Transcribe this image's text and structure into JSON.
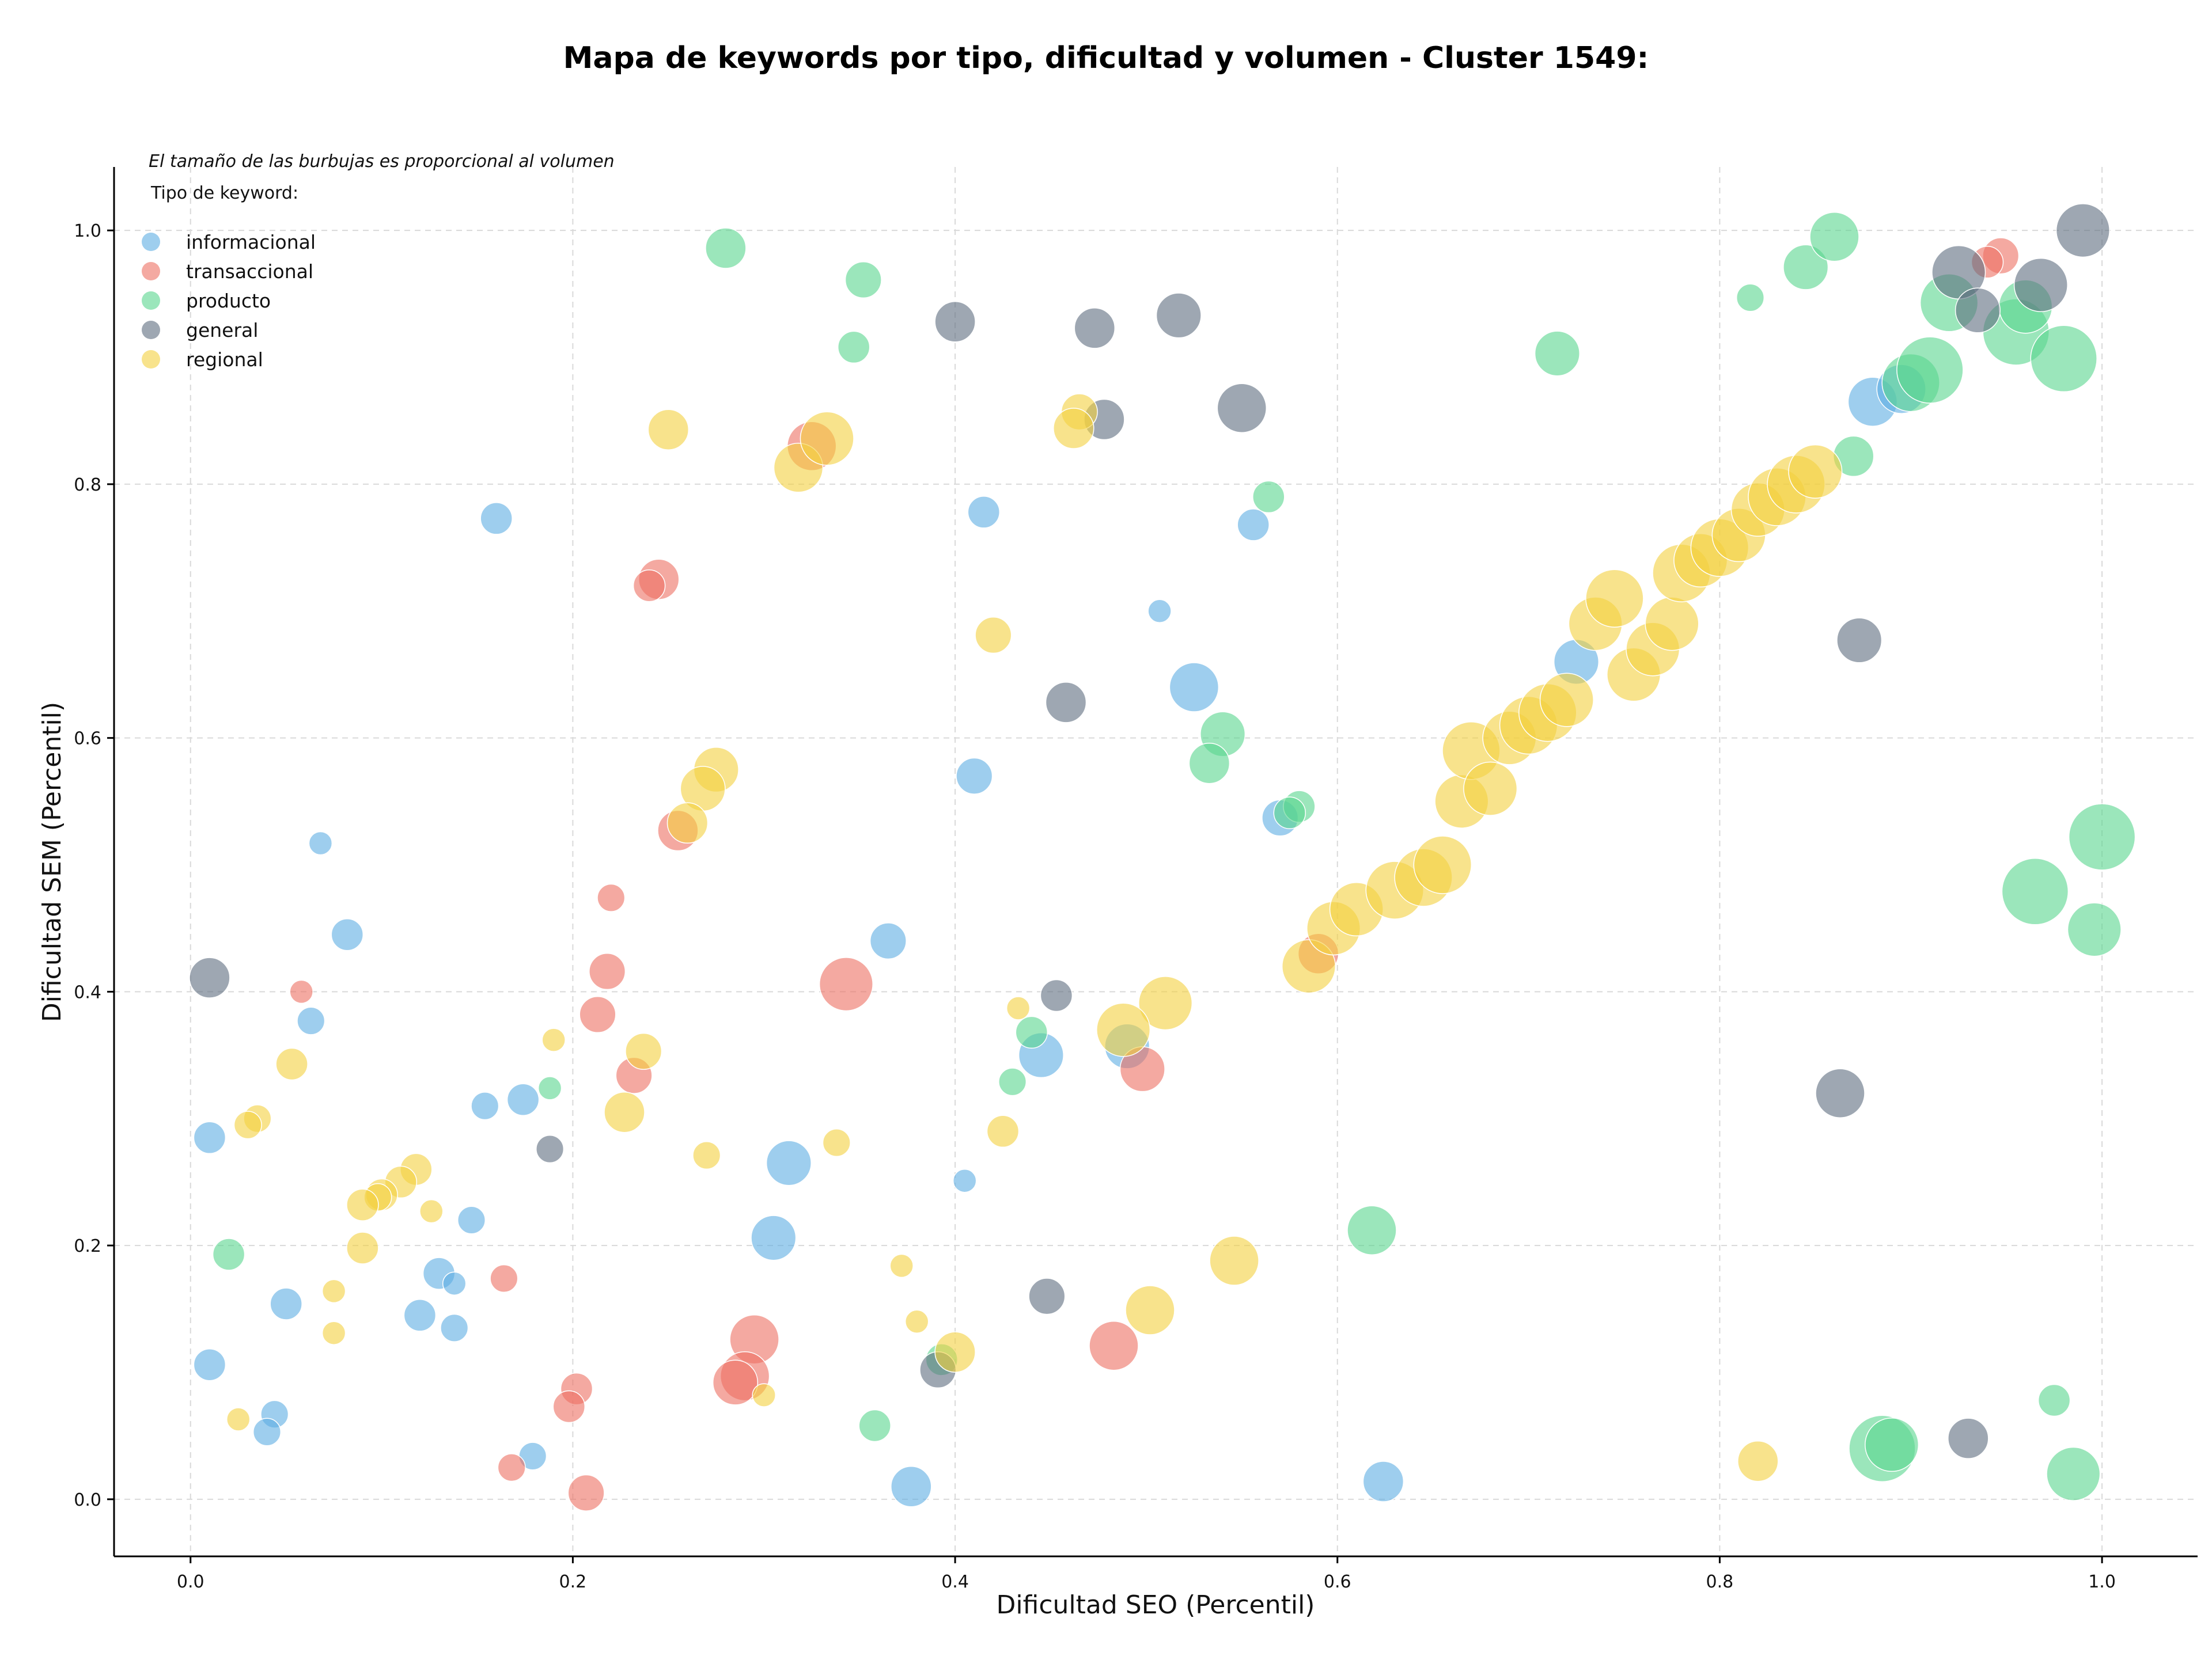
{
  "chart_data": {
    "type": "scatter",
    "title": "Mapa de keywords por tipo, dificultad y volumen - Cluster 1549:",
    "subtitle": "El tamaño de las burbujas es proporcional al volumen",
    "xlabel": "Dificultad SEO (Percentil)",
    "ylabel": "Dificultad SEM (Percentil)",
    "xlim": [
      -0.04,
      1.05
    ],
    "ylim": [
      -0.045,
      1.05
    ],
    "xticks": [
      "0.0",
      "0.2",
      "0.4",
      "0.6",
      "0.8",
      "1.0"
    ],
    "yticks": [
      "0.0",
      "0.2",
      "0.4",
      "0.6",
      "0.8",
      "1.0"
    ],
    "grid": true,
    "legend_title": "Tipo de keyword:",
    "legend_position": "top-left",
    "series": [
      {
        "name": "informacional",
        "color": "#5DADE2",
        "points": [
          [
            0.16,
            0.773,
            2
          ],
          [
            0.415,
            0.778,
            2
          ],
          [
            0.556,
            0.768,
            2
          ],
          [
            0.507,
            0.7,
            1
          ],
          [
            0.525,
            0.64,
            4
          ],
          [
            0.41,
            0.57,
            2.5
          ],
          [
            0.57,
            0.537,
            2.5
          ],
          [
            0.068,
            0.517,
            1
          ],
          [
            0.082,
            0.445,
            2
          ],
          [
            0.365,
            0.44,
            2.5
          ],
          [
            0.063,
            0.377,
            1.5
          ],
          [
            0.445,
            0.35,
            3.5
          ],
          [
            0.49,
            0.357,
            3.5
          ],
          [
            0.174,
            0.315,
            2
          ],
          [
            0.154,
            0.31,
            1.5
          ],
          [
            0.01,
            0.285,
            2
          ],
          [
            0.313,
            0.265,
            3.5
          ],
          [
            0.405,
            0.251,
            1
          ],
          [
            0.147,
            0.22,
            1.5
          ],
          [
            0.305,
            0.206,
            3.5
          ],
          [
            0.13,
            0.178,
            2
          ],
          [
            0.138,
            0.17,
            1
          ],
          [
            0.05,
            0.154,
            2
          ],
          [
            0.12,
            0.145,
            2
          ],
          [
            0.138,
            0.135,
            1.5
          ],
          [
            0.01,
            0.106,
            2
          ],
          [
            0.044,
            0.067,
            1.5
          ],
          [
            0.04,
            0.053,
            1.5
          ],
          [
            0.179,
            0.034,
            1.5
          ],
          [
            0.377,
            0.01,
            3
          ],
          [
            0.624,
            0.014,
            3
          ],
          [
            0.88,
            0.865,
            4
          ],
          [
            0.895,
            0.875,
            4
          ],
          [
            0.725,
            0.66,
            3.5
          ]
        ]
      },
      {
        "name": "transaccional",
        "color": "#EC7063",
        "points": [
          [
            0.325,
            0.83,
            4
          ],
          [
            0.245,
            0.725,
            3
          ],
          [
            0.24,
            0.72,
            2
          ],
          [
            0.255,
            0.527,
            3
          ],
          [
            0.22,
            0.474,
            1.5
          ],
          [
            0.218,
            0.416,
            2.5
          ],
          [
            0.343,
            0.406,
            4.5
          ],
          [
            0.058,
            0.4,
            1
          ],
          [
            0.213,
            0.382,
            2.5
          ],
          [
            0.232,
            0.334,
            2.5
          ],
          [
            0.498,
            0.339,
            3.5
          ],
          [
            0.164,
            0.174,
            1.5
          ],
          [
            0.295,
            0.126,
            4
          ],
          [
            0.483,
            0.121,
            4
          ],
          [
            0.29,
            0.097,
            4
          ],
          [
            0.285,
            0.092,
            3.5
          ],
          [
            0.202,
            0.087,
            2
          ],
          [
            0.198,
            0.073,
            2
          ],
          [
            0.168,
            0.025,
            1.5
          ],
          [
            0.207,
            0.005,
            2.5
          ],
          [
            0.59,
            0.43,
            3
          ],
          [
            0.947,
            0.98,
            2.5
          ],
          [
            0.94,
            0.975,
            2
          ]
        ]
      },
      {
        "name": "producto",
        "color": "#58D68D",
        "points": [
          [
            0.28,
            0.986,
            3
          ],
          [
            0.352,
            0.961,
            2.5
          ],
          [
            0.347,
            0.908,
            2
          ],
          [
            0.564,
            0.79,
            2
          ],
          [
            0.54,
            0.603,
            3.5
          ],
          [
            0.533,
            0.58,
            3
          ],
          [
            0.58,
            0.546,
            2
          ],
          [
            0.575,
            0.541,
            2
          ],
          [
            0.44,
            0.368,
            2
          ],
          [
            0.43,
            0.329,
            1.5
          ],
          [
            0.188,
            0.324,
            1
          ],
          [
            0.02,
            0.193,
            2
          ],
          [
            0.618,
            0.212,
            4
          ],
          [
            0.393,
            0.11,
            2
          ],
          [
            0.358,
            0.058,
            2
          ],
          [
            0.715,
            0.903,
            3.5
          ],
          [
            0.816,
            0.947,
            1.5
          ],
          [
            0.845,
            0.971,
            3.5
          ],
          [
            0.86,
            0.995,
            4
          ],
          [
            0.87,
            0.822,
            3
          ],
          [
            0.9,
            0.88,
            5
          ],
          [
            0.91,
            0.89,
            6
          ],
          [
            0.92,
            0.943,
            5
          ],
          [
            0.955,
            0.92,
            6
          ],
          [
            0.96,
            0.94,
            4.5
          ],
          [
            0.98,
            0.899,
            6
          ],
          [
            1.0,
            0.522,
            6
          ],
          [
            0.965,
            0.479,
            6
          ],
          [
            0.996,
            0.449,
            4.5
          ],
          [
            0.885,
            0.04,
            6
          ],
          [
            0.89,
            0.043,
            4.5
          ],
          [
            0.975,
            0.078,
            2
          ],
          [
            0.985,
            0.02,
            4.5
          ]
        ]
      },
      {
        "name": "general",
        "color": "#5D6D7E",
        "points": [
          [
            0.4,
            0.928,
            3
          ],
          [
            0.473,
            0.923,
            3
          ],
          [
            0.517,
            0.933,
            3.5
          ],
          [
            0.55,
            0.86,
            4
          ],
          [
            0.478,
            0.851,
            3
          ],
          [
            0.458,
            0.628,
            3
          ],
          [
            0.01,
            0.411,
            3
          ],
          [
            0.453,
            0.397,
            2
          ],
          [
            0.188,
            0.276,
            1.5
          ],
          [
            0.448,
            0.16,
            2.5
          ],
          [
            0.391,
            0.102,
            2.5
          ],
          [
            0.925,
            0.967,
            4.5
          ],
          [
            0.935,
            0.937,
            3.5
          ],
          [
            0.968,
            0.957,
            4.5
          ],
          [
            0.99,
            1.0,
            4.5
          ],
          [
            0.873,
            0.677,
            3.5
          ],
          [
            0.863,
            0.32,
            4
          ],
          [
            0.93,
            0.048,
            3
          ]
        ]
      },
      {
        "name": "regional",
        "color": "#F4D03F",
        "points": [
          [
            0.25,
            0.843,
            3
          ],
          [
            0.318,
            0.813,
            4
          ],
          [
            0.333,
            0.836,
            4.5
          ],
          [
            0.465,
            0.857,
            2.5
          ],
          [
            0.462,
            0.844,
            3
          ],
          [
            0.42,
            0.681,
            2.5
          ],
          [
            0.275,
            0.575,
            3.5
          ],
          [
            0.268,
            0.56,
            3.5
          ],
          [
            0.26,
            0.533,
            3
          ],
          [
            0.433,
            0.387,
            1
          ],
          [
            0.51,
            0.391,
            4.5
          ],
          [
            0.488,
            0.37,
            4.5
          ],
          [
            0.237,
            0.353,
            2.5
          ],
          [
            0.053,
            0.343,
            2
          ],
          [
            0.19,
            0.362,
            1
          ],
          [
            0.227,
            0.305,
            3
          ],
          [
            0.425,
            0.29,
            2
          ],
          [
            0.338,
            0.281,
            1.5
          ],
          [
            0.27,
            0.271,
            1.5
          ],
          [
            0.035,
            0.3,
            1.5
          ],
          [
            0.03,
            0.295,
            1.5
          ],
          [
            0.118,
            0.26,
            2
          ],
          [
            0.11,
            0.25,
            2
          ],
          [
            0.1,
            0.24,
            2
          ],
          [
            0.098,
            0.238,
            1.5
          ],
          [
            0.09,
            0.232,
            2
          ],
          [
            0.126,
            0.227,
            1
          ],
          [
            0.09,
            0.198,
            2
          ],
          [
            0.075,
            0.164,
            1
          ],
          [
            0.075,
            0.131,
            1
          ],
          [
            0.025,
            0.063,
            1
          ],
          [
            0.372,
            0.184,
            1
          ],
          [
            0.38,
            0.14,
            1
          ],
          [
            0.4,
            0.116,
            3
          ],
          [
            0.3,
            0.082,
            1
          ],
          [
            0.502,
            0.149,
            4
          ],
          [
            0.546,
            0.188,
            4
          ],
          [
            0.82,
            0.03,
            3
          ],
          [
            0.585,
            0.42,
            4.5
          ],
          [
            0.598,
            0.45,
            4.5
          ],
          [
            0.61,
            0.465,
            4.5
          ],
          [
            0.63,
            0.48,
            5
          ],
          [
            0.645,
            0.49,
            5
          ],
          [
            0.655,
            0.5,
            5
          ],
          [
            0.665,
            0.55,
            4.5
          ],
          [
            0.67,
            0.59,
            5
          ],
          [
            0.68,
            0.56,
            4.5
          ],
          [
            0.69,
            0.6,
            4.5
          ],
          [
            0.7,
            0.61,
            5
          ],
          [
            0.71,
            0.62,
            5
          ],
          [
            0.72,
            0.63,
            4.5
          ],
          [
            0.735,
            0.69,
            4.5
          ],
          [
            0.745,
            0.71,
            5
          ],
          [
            0.755,
            0.65,
            4.5
          ],
          [
            0.765,
            0.67,
            4.5
          ],
          [
            0.775,
            0.69,
            4.5
          ],
          [
            0.78,
            0.73,
            5
          ],
          [
            0.79,
            0.74,
            4.5
          ],
          [
            0.8,
            0.75,
            5
          ],
          [
            0.81,
            0.76,
            4.5
          ],
          [
            0.82,
            0.78,
            4.5
          ],
          [
            0.83,
            0.79,
            5
          ],
          [
            0.84,
            0.8,
            5
          ],
          [
            0.85,
            0.81,
            4.5
          ]
        ]
      }
    ]
  }
}
